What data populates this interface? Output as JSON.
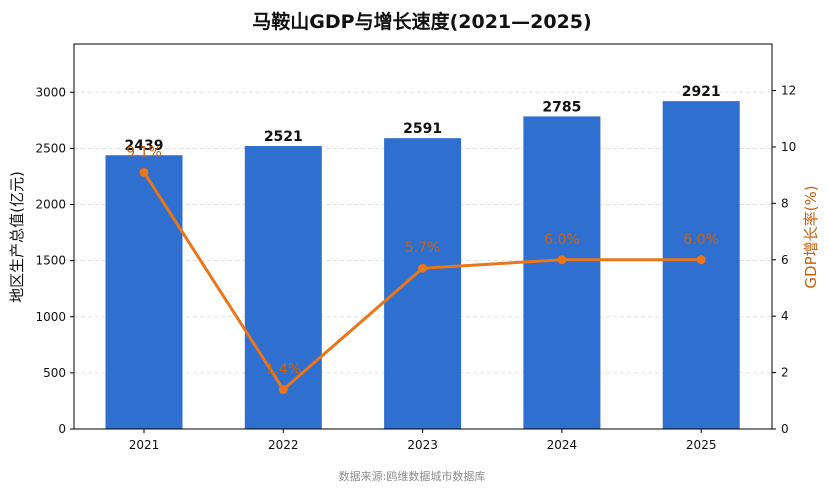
{
  "chart_data": {
    "type": "bar",
    "title": "马鞍山GDP与增长速度(2021—2025)",
    "categories": [
      "2021",
      "2022",
      "2023",
      "2024",
      "2025"
    ],
    "series": [
      {
        "name": "地区生产总值(亿元)",
        "type": "bar",
        "axis": "left",
        "values": [
          2439,
          2521,
          2591,
          2785,
          2921
        ],
        "labels": [
          "2439",
          "2521",
          "2591",
          "2785",
          "2921"
        ]
      },
      {
        "name": "GDP增长率(%)",
        "type": "line",
        "axis": "right",
        "values": [
          9.1,
          1.4,
          5.7,
          6.0,
          6.0
        ],
        "labels": [
          "9.1%",
          "1.4%",
          "5.7%",
          "6.0%",
          "6.0%"
        ]
      }
    ],
    "ylabel": "地区生产总值(亿元)",
    "ylabel_right": "GDP增长率(%)",
    "ylim": [
      0,
      3430
    ],
    "ylim_right": [
      0,
      13.65
    ],
    "yticks": [
      0,
      500,
      1000,
      1500,
      2000,
      2500,
      3000
    ],
    "yticks_right": [
      0,
      2,
      4,
      6,
      8,
      10,
      12
    ],
    "grid": "horizontal dashed",
    "colors": {
      "bar": "#2f6fcf",
      "line": "#e8761a",
      "right_axis_text": "#c8620f"
    }
  },
  "source": "数据来源:鸥维数据城市数据库"
}
